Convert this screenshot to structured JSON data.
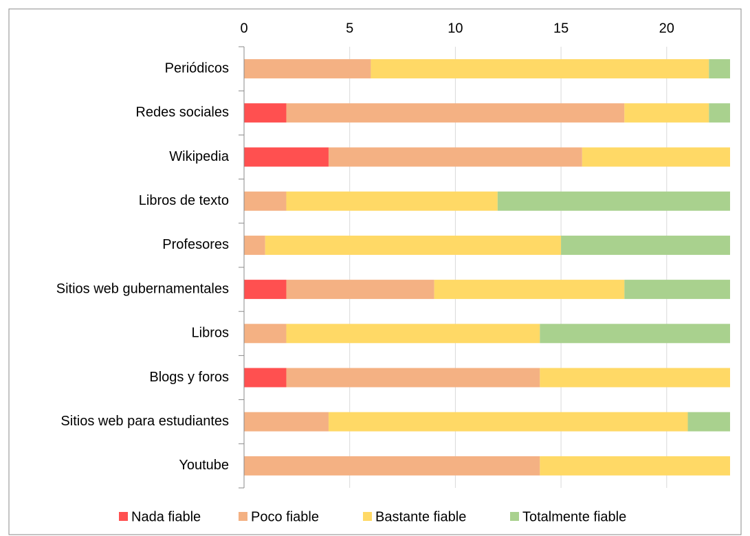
{
  "chart_data": {
    "type": "stacked-barh",
    "categories": [
      "Periódicos",
      "Redes sociales",
      "Wikipedia",
      "Libros de texto",
      "Profesores",
      "Sitios web gubernamentales",
      "Libros",
      "Blogs y foros",
      "Sitios web para estudiantes",
      "Youtube"
    ],
    "series": [
      {
        "name": "Nada fiable",
        "color": "#ff5050",
        "values": [
          0,
          2,
          4,
          0,
          0,
          2,
          0,
          2,
          0,
          0
        ]
      },
      {
        "name": "Poco fiable",
        "color": "#f4b183",
        "values": [
          6,
          16,
          12,
          2,
          1,
          7,
          2,
          12,
          4,
          14
        ]
      },
      {
        "name": "Bastante fiable",
        "color": "#ffd966",
        "values": [
          16,
          4,
          7,
          10,
          14,
          9,
          12,
          9,
          17,
          9
        ]
      },
      {
        "name": "Totalmente fiable",
        "color": "#a9d18e",
        "values": [
          1,
          1,
          0,
          11,
          8,
          5,
          9,
          0,
          2,
          0
        ]
      }
    ],
    "xlim": [
      0,
      23
    ],
    "xticks": [
      0,
      5,
      10,
      15,
      20
    ],
    "grid": true,
    "legend": "bottom"
  }
}
